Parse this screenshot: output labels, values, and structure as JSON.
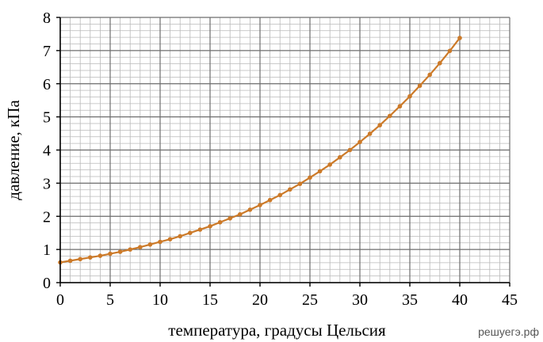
{
  "chart_data": {
    "type": "line",
    "xlabel": "температура, градусы Цельсия",
    "ylabel": "давление, кПа",
    "xlim": [
      0,
      45
    ],
    "ylim": [
      0,
      8
    ],
    "x_ticks": [
      0,
      5,
      10,
      15,
      20,
      25,
      30,
      35,
      40,
      45
    ],
    "y_ticks": [
      0,
      1,
      2,
      3,
      4,
      5,
      6,
      7,
      8
    ],
    "x_minor_step": 1,
    "y_minor_step": 0.2,
    "grid": true,
    "line_color": "#cc7a29",
    "series": [
      {
        "x": [
          0,
          1,
          2,
          3,
          4,
          5,
          6,
          7,
          8,
          9,
          10,
          11,
          12,
          13,
          14,
          15,
          16,
          17,
          18,
          19,
          20,
          21,
          22,
          23,
          24,
          25,
          26,
          27,
          28,
          29,
          30,
          31,
          32,
          33,
          34,
          35,
          36,
          37,
          38,
          39,
          40
        ],
        "values": [
          0.61,
          0.66,
          0.71,
          0.76,
          0.81,
          0.87,
          0.93,
          1.0,
          1.07,
          1.15,
          1.23,
          1.31,
          1.4,
          1.5,
          1.6,
          1.7,
          1.82,
          1.94,
          2.06,
          2.2,
          2.34,
          2.49,
          2.64,
          2.81,
          2.98,
          3.17,
          3.36,
          3.56,
          3.78,
          4.0,
          4.24,
          4.49,
          4.75,
          5.03,
          5.32,
          5.62,
          5.94,
          6.27,
          6.62,
          6.99,
          7.38
        ]
      }
    ]
  },
  "watermark": "решуегэ.рф"
}
